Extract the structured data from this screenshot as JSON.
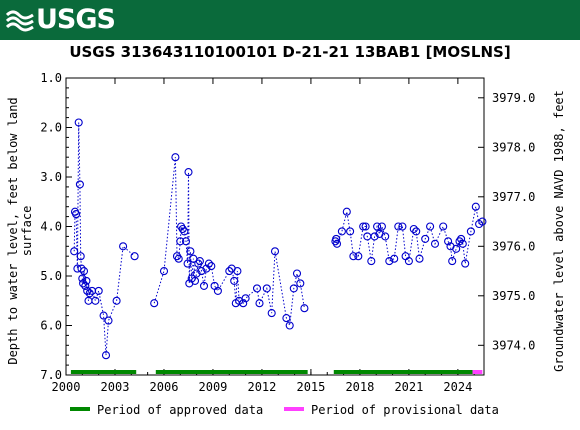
{
  "header": {
    "logo_text": "USGS",
    "brand_color": "#0a6a3b"
  },
  "chart_data": {
    "type": "scatter",
    "title": "USGS 313643110100101 D-21-21 13BAB1 [MOSLNS]",
    "ylabel_line1": "Depth to water level, feet below land",
    "ylabel_line2": "surface",
    "y2label": "Groundwater level above NAVD 1988, feet",
    "xlim": [
      2000,
      2025.6
    ],
    "ylim": [
      7.0,
      1.0
    ],
    "y2lim": [
      3973.4,
      3979.4
    ],
    "x_ticks": [
      2000,
      2003,
      2006,
      2009,
      2012,
      2015,
      2018,
      2021,
      2024
    ],
    "x_tick_labels": [
      "2000",
      "2003",
      "2006",
      "2009",
      "2012",
      "2015",
      "2018",
      "2021",
      "2024"
    ],
    "y_ticks": [
      1.0,
      2.0,
      3.0,
      4.0,
      5.0,
      6.0,
      7.0
    ],
    "y_tick_labels": [
      "1.0",
      "2.0",
      "3.0",
      "4.0",
      "5.0",
      "6.0",
      "7.0"
    ],
    "y2_ticks": [
      3979.0,
      3978.0,
      3977.0,
      3976.0,
      3975.0,
      3974.0
    ],
    "y2_tick_labels": [
      "3979.0",
      "3978.0",
      "3977.0",
      "3976.0",
      "3975.0",
      "3974.0"
    ],
    "series_color": "#0000cc",
    "segments": [
      [
        [
          2000.5,
          4.5
        ],
        [
          2000.55,
          3.7
        ],
        [
          2000.62,
          3.75
        ],
        [
          2000.7,
          4.85
        ],
        [
          2000.78,
          1.9
        ],
        [
          2000.85,
          3.15
        ],
        [
          2000.9,
          4.6
        ],
        [
          2000.95,
          4.85
        ],
        [
          2001.0,
          5.05
        ],
        [
          2001.05,
          5.15
        ],
        [
          2001.1,
          4.9
        ],
        [
          2001.18,
          5.2
        ],
        [
          2001.25,
          5.1
        ],
        [
          2001.3,
          5.3
        ],
        [
          2001.38,
          5.5
        ],
        [
          2001.45,
          5.35
        ],
        [
          2001.6,
          5.3
        ],
        [
          2001.8,
          5.5
        ],
        [
          2002.0,
          5.3
        ],
        [
          2002.3,
          5.8
        ],
        [
          2002.45,
          6.6
        ],
        [
          2002.6,
          5.9
        ],
        [
          2003.1,
          5.5
        ],
        [
          2003.5,
          4.4
        ],
        [
          2004.2,
          4.6
        ]
      ],
      [
        [
          2005.4,
          5.55
        ],
        [
          2006.0,
          4.9
        ],
        [
          2006.7,
          2.6
        ],
        [
          2006.8,
          4.6
        ],
        [
          2006.9,
          4.65
        ],
        [
          2007.0,
          4.3
        ],
        [
          2007.05,
          4.0
        ],
        [
          2007.15,
          4.05
        ],
        [
          2007.25,
          4.1
        ],
        [
          2007.35,
          4.3
        ],
        [
          2007.45,
          4.75
        ],
        [
          2007.5,
          2.9
        ],
        [
          2007.55,
          5.15
        ],
        [
          2007.62,
          4.5
        ],
        [
          2007.7,
          5.05
        ],
        [
          2007.8,
          4.65
        ],
        [
          2007.9,
          5.1
        ],
        [
          2008.0,
          4.95
        ],
        [
          2008.1,
          4.75
        ],
        [
          2008.2,
          4.7
        ],
        [
          2008.3,
          4.9
        ],
        [
          2008.45,
          5.2
        ],
        [
          2008.6,
          4.85
        ],
        [
          2008.75,
          4.75
        ],
        [
          2008.9,
          4.8
        ],
        [
          2009.1,
          5.2
        ],
        [
          2009.3,
          5.3
        ],
        [
          2010.0,
          4.9
        ],
        [
          2010.15,
          4.85
        ],
        [
          2010.3,
          5.1
        ],
        [
          2010.4,
          5.55
        ],
        [
          2010.5,
          4.9
        ],
        [
          2010.6,
          5.5
        ],
        [
          2010.85,
          5.55
        ],
        [
          2011.0,
          5.45
        ],
        [
          2011.7,
          5.25
        ],
        [
          2011.85,
          5.55
        ],
        [
          2012.3,
          5.25
        ],
        [
          2012.6,
          5.75
        ],
        [
          2012.8,
          4.5
        ],
        [
          2013.5,
          5.85
        ],
        [
          2013.7,
          6.0
        ],
        [
          2013.95,
          5.25
        ],
        [
          2014.15,
          4.95
        ],
        [
          2014.35,
          5.15
        ],
        [
          2014.6,
          5.65
        ]
      ],
      [
        [
          2016.5,
          4.3
        ],
        [
          2016.55,
          4.25
        ],
        [
          2016.6,
          4.35
        ],
        [
          2016.9,
          4.1
        ],
        [
          2017.2,
          3.7
        ],
        [
          2017.4,
          4.1
        ],
        [
          2017.6,
          4.6
        ],
        [
          2017.9,
          4.6
        ],
        [
          2018.2,
          4.0
        ],
        [
          2018.35,
          4.0
        ],
        [
          2018.45,
          4.2
        ],
        [
          2018.7,
          4.7
        ],
        [
          2018.9,
          4.2
        ],
        [
          2019.05,
          4.0
        ],
        [
          2019.2,
          4.15
        ],
        [
          2019.35,
          4.0
        ],
        [
          2019.55,
          4.2
        ],
        [
          2019.8,
          4.7
        ],
        [
          2020.1,
          4.65
        ],
        [
          2020.35,
          4.0
        ],
        [
          2020.6,
          4.0
        ],
        [
          2020.8,
          4.6
        ],
        [
          2021.0,
          4.7
        ],
        [
          2021.3,
          4.05
        ],
        [
          2021.45,
          4.1
        ],
        [
          2021.65,
          4.65
        ],
        [
          2022.0,
          4.25
        ],
        [
          2022.3,
          4.0
        ],
        [
          2022.6,
          4.35
        ],
        [
          2023.1,
          4.0
        ],
        [
          2023.4,
          4.3
        ],
        [
          2023.55,
          4.4
        ],
        [
          2023.65,
          4.7
        ],
        [
          2023.9,
          4.45
        ],
        [
          2024.1,
          4.3
        ],
        [
          2024.2,
          4.25
        ],
        [
          2024.3,
          4.35
        ],
        [
          2024.45,
          4.75
        ],
        [
          2024.8,
          4.1
        ],
        [
          2025.1,
          3.6
        ],
        [
          2025.3,
          3.95
        ],
        [
          2025.5,
          3.9
        ]
      ]
    ],
    "periods": [
      {
        "status": "approved",
        "color": "#008800",
        "start": 2000.3,
        "end": 2004.3
      },
      {
        "status": "approved",
        "color": "#008800",
        "start": 2005.5,
        "end": 2014.8
      },
      {
        "status": "approved",
        "color": "#008800",
        "start": 2016.4,
        "end": 2024.9
      },
      {
        "status": "provisional",
        "color": "#ff40ff",
        "start": 2024.9,
        "end": 2025.5
      }
    ],
    "legend": [
      {
        "label": "Period of approved data",
        "color": "#008800"
      },
      {
        "label": "Period of provisional data",
        "color": "#ff40ff"
      }
    ]
  }
}
